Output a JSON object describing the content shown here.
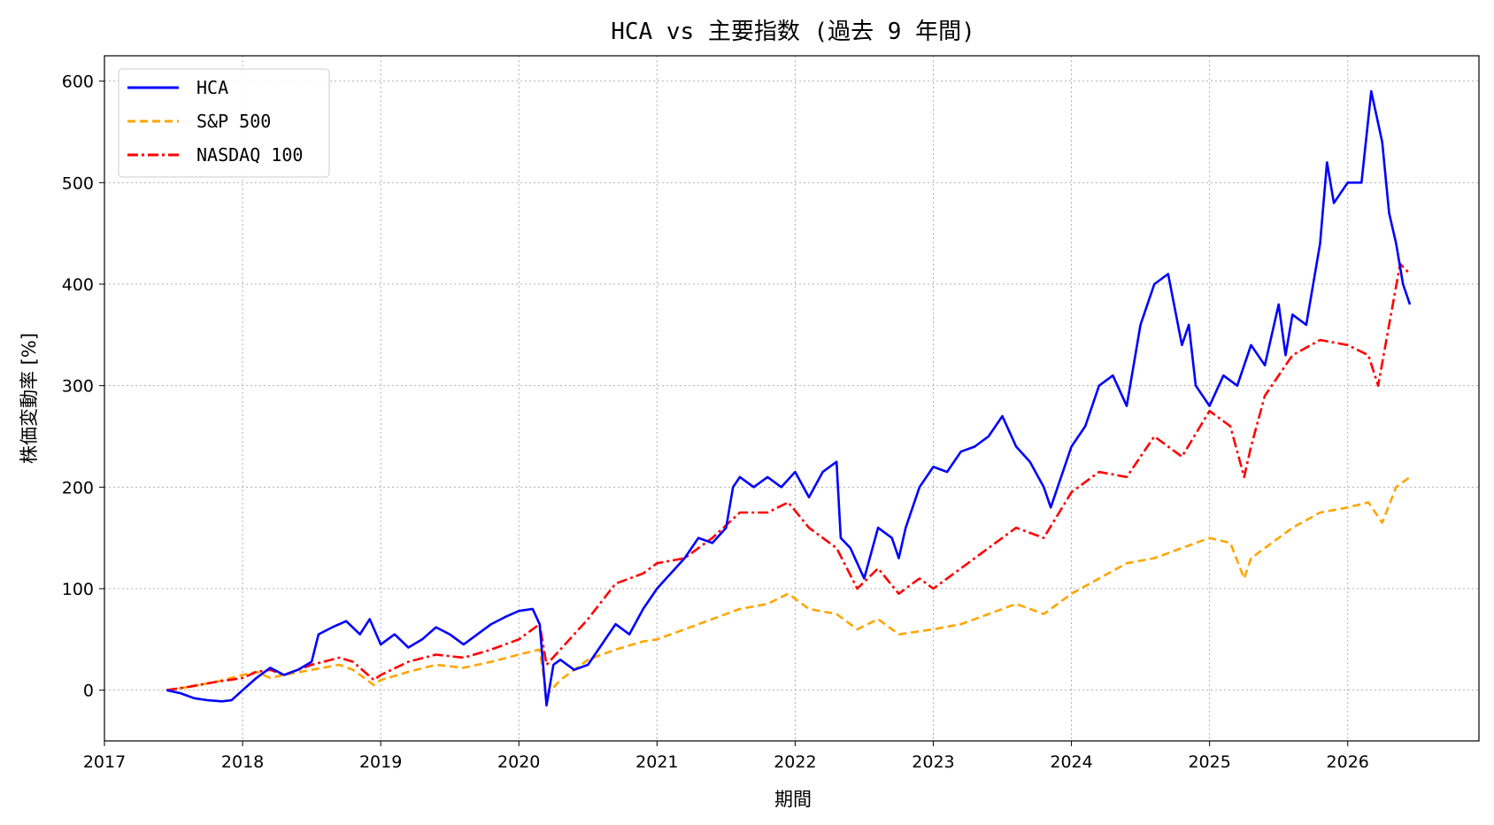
{
  "chart_data": {
    "type": "line",
    "title": "HCA vs 主要指数 (過去 9 年間)",
    "xlabel": "期間",
    "ylabel": "株価変動率 [%]",
    "xlim": [
      2017.0,
      2026.95
    ],
    "ylim": [
      -50,
      625
    ],
    "x_ticks": [
      2017,
      2018,
      2019,
      2020,
      2021,
      2022,
      2023,
      2024,
      2025,
      2026
    ],
    "x_tick_labels": [
      "2017",
      "2018",
      "2019",
      "2020",
      "2021",
      "2022",
      "2023",
      "2024",
      "2025",
      "2026"
    ],
    "y_ticks": [
      0,
      100,
      200,
      300,
      400,
      500,
      600
    ],
    "y_tick_labels": [
      "0",
      "100",
      "200",
      "300",
      "400",
      "500",
      "600"
    ],
    "grid": true,
    "legend_position": "top-left",
    "series": [
      {
        "name": "HCA",
        "color": "#0000ff",
        "style": "solid",
        "x": [
          2017.45,
          2017.55,
          2017.65,
          2017.75,
          2017.85,
          2017.92,
          2018.0,
          2018.1,
          2018.2,
          2018.3,
          2018.4,
          2018.5,
          2018.55,
          2018.65,
          2018.75,
          2018.85,
          2018.92,
          2019.0,
          2019.1,
          2019.2,
          2019.3,
          2019.4,
          2019.5,
          2019.6,
          2019.7,
          2019.8,
          2019.9,
          2020.0,
          2020.1,
          2020.15,
          2020.2,
          2020.25,
          2020.3,
          2020.4,
          2020.5,
          2020.6,
          2020.7,
          2020.8,
          2020.9,
          2021.0,
          2021.1,
          2021.2,
          2021.3,
          2021.4,
          2021.5,
          2021.55,
          2021.6,
          2021.7,
          2021.8,
          2021.9,
          2022.0,
          2022.1,
          2022.2,
          2022.3,
          2022.33,
          2022.4,
          2022.5,
          2022.6,
          2022.7,
          2022.75,
          2022.8,
          2022.9,
          2023.0,
          2023.1,
          2023.2,
          2023.3,
          2023.4,
          2023.5,
          2023.6,
          2023.7,
          2023.8,
          2023.85,
          2023.9,
          2024.0,
          2024.1,
          2024.2,
          2024.3,
          2024.4,
          2024.5,
          2024.6,
          2024.7,
          2024.8,
          2024.85,
          2024.9,
          2025.0,
          2025.1,
          2025.2,
          2025.3,
          2025.4,
          2025.5,
          2025.55,
          2025.6,
          2025.7,
          2025.8,
          2025.85,
          2025.9,
          2026.0,
          2026.1,
          2026.17,
          2026.25,
          2026.3,
          2026.35,
          2026.4,
          2026.45
        ],
        "y": [
          0,
          -3,
          -8,
          -10,
          -11,
          -10,
          0,
          12,
          22,
          15,
          20,
          28,
          55,
          62,
          68,
          55,
          70,
          45,
          55,
          42,
          50,
          62,
          55,
          45,
          55,
          65,
          72,
          78,
          80,
          65,
          -15,
          25,
          30,
          20,
          25,
          45,
          65,
          55,
          80,
          100,
          115,
          130,
          150,
          145,
          160,
          200,
          210,
          200,
          210,
          200,
          215,
          190,
          215,
          225,
          150,
          140,
          110,
          160,
          150,
          130,
          160,
          200,
          220,
          215,
          235,
          240,
          250,
          270,
          240,
          225,
          200,
          180,
          200,
          240,
          260,
          300,
          310,
          280,
          360,
          400,
          410,
          340,
          360,
          300,
          280,
          310,
          300,
          340,
          320,
          380,
          330,
          370,
          360,
          440,
          520,
          480,
          500,
          500,
          590,
          540,
          470,
          440,
          400,
          380
        ]
      },
      {
        "name": "S&P 500",
        "color": "#ffa500",
        "style": "dashed",
        "x": [
          2017.45,
          2017.6,
          2017.8,
          2018.0,
          2018.1,
          2018.2,
          2018.3,
          2018.5,
          2018.7,
          2018.8,
          2018.95,
          2019.0,
          2019.2,
          2019.4,
          2019.6,
          2019.8,
          2020.0,
          2020.15,
          2020.2,
          2020.3,
          2020.5,
          2020.7,
          2020.9,
          2021.0,
          2021.2,
          2021.4,
          2021.6,
          2021.8,
          2021.95,
          2022.1,
          2022.3,
          2022.45,
          2022.6,
          2022.75,
          2022.9,
          2023.0,
          2023.2,
          2023.4,
          2023.6,
          2023.8,
          2024.0,
          2024.2,
          2024.4,
          2024.6,
          2024.8,
          2025.0,
          2025.15,
          2025.25,
          2025.3,
          2025.4,
          2025.6,
          2025.8,
          2026.0,
          2026.15,
          2026.25,
          2026.35,
          2026.45
        ],
        "y": [
          0,
          3,
          8,
          15,
          18,
          12,
          15,
          20,
          25,
          20,
          5,
          10,
          18,
          25,
          22,
          28,
          35,
          40,
          -5,
          10,
          30,
          40,
          48,
          50,
          60,
          70,
          80,
          85,
          95,
          80,
          75,
          60,
          70,
          55,
          58,
          60,
          65,
          75,
          85,
          75,
          95,
          110,
          125,
          130,
          140,
          150,
          145,
          110,
          130,
          140,
          160,
          175,
          180,
          185,
          165,
          200,
          210
        ]
      },
      {
        "name": "NASDAQ 100",
        "color": "#ff0000",
        "style": "dashdot",
        "x": [
          2017.45,
          2017.6,
          2017.8,
          2018.0,
          2018.1,
          2018.2,
          2018.3,
          2018.5,
          2018.7,
          2018.8,
          2018.95,
          2019.0,
          2019.2,
          2019.4,
          2019.6,
          2019.8,
          2020.0,
          2020.15,
          2020.2,
          2020.3,
          2020.5,
          2020.7,
          2020.9,
          2021.0,
          2021.2,
          2021.4,
          2021.6,
          2021.8,
          2021.95,
          2022.1,
          2022.3,
          2022.45,
          2022.6,
          2022.75,
          2022.9,
          2023.0,
          2023.2,
          2023.4,
          2023.6,
          2023.8,
          2024.0,
          2024.2,
          2024.4,
          2024.6,
          2024.8,
          2025.0,
          2025.15,
          2025.25,
          2025.3,
          2025.4,
          2025.6,
          2025.8,
          2026.0,
          2026.15,
          2026.22,
          2026.3,
          2026.38,
          2026.45
        ],
        "y": [
          0,
          3,
          8,
          12,
          18,
          20,
          15,
          25,
          32,
          28,
          10,
          15,
          28,
          35,
          32,
          40,
          50,
          65,
          25,
          40,
          70,
          105,
          115,
          125,
          130,
          150,
          175,
          175,
          185,
          160,
          140,
          100,
          120,
          95,
          110,
          100,
          120,
          140,
          160,
          150,
          195,
          215,
          210,
          250,
          230,
          275,
          260,
          210,
          240,
          290,
          330,
          345,
          340,
          330,
          300,
          360,
          420,
          410
        ]
      }
    ]
  }
}
